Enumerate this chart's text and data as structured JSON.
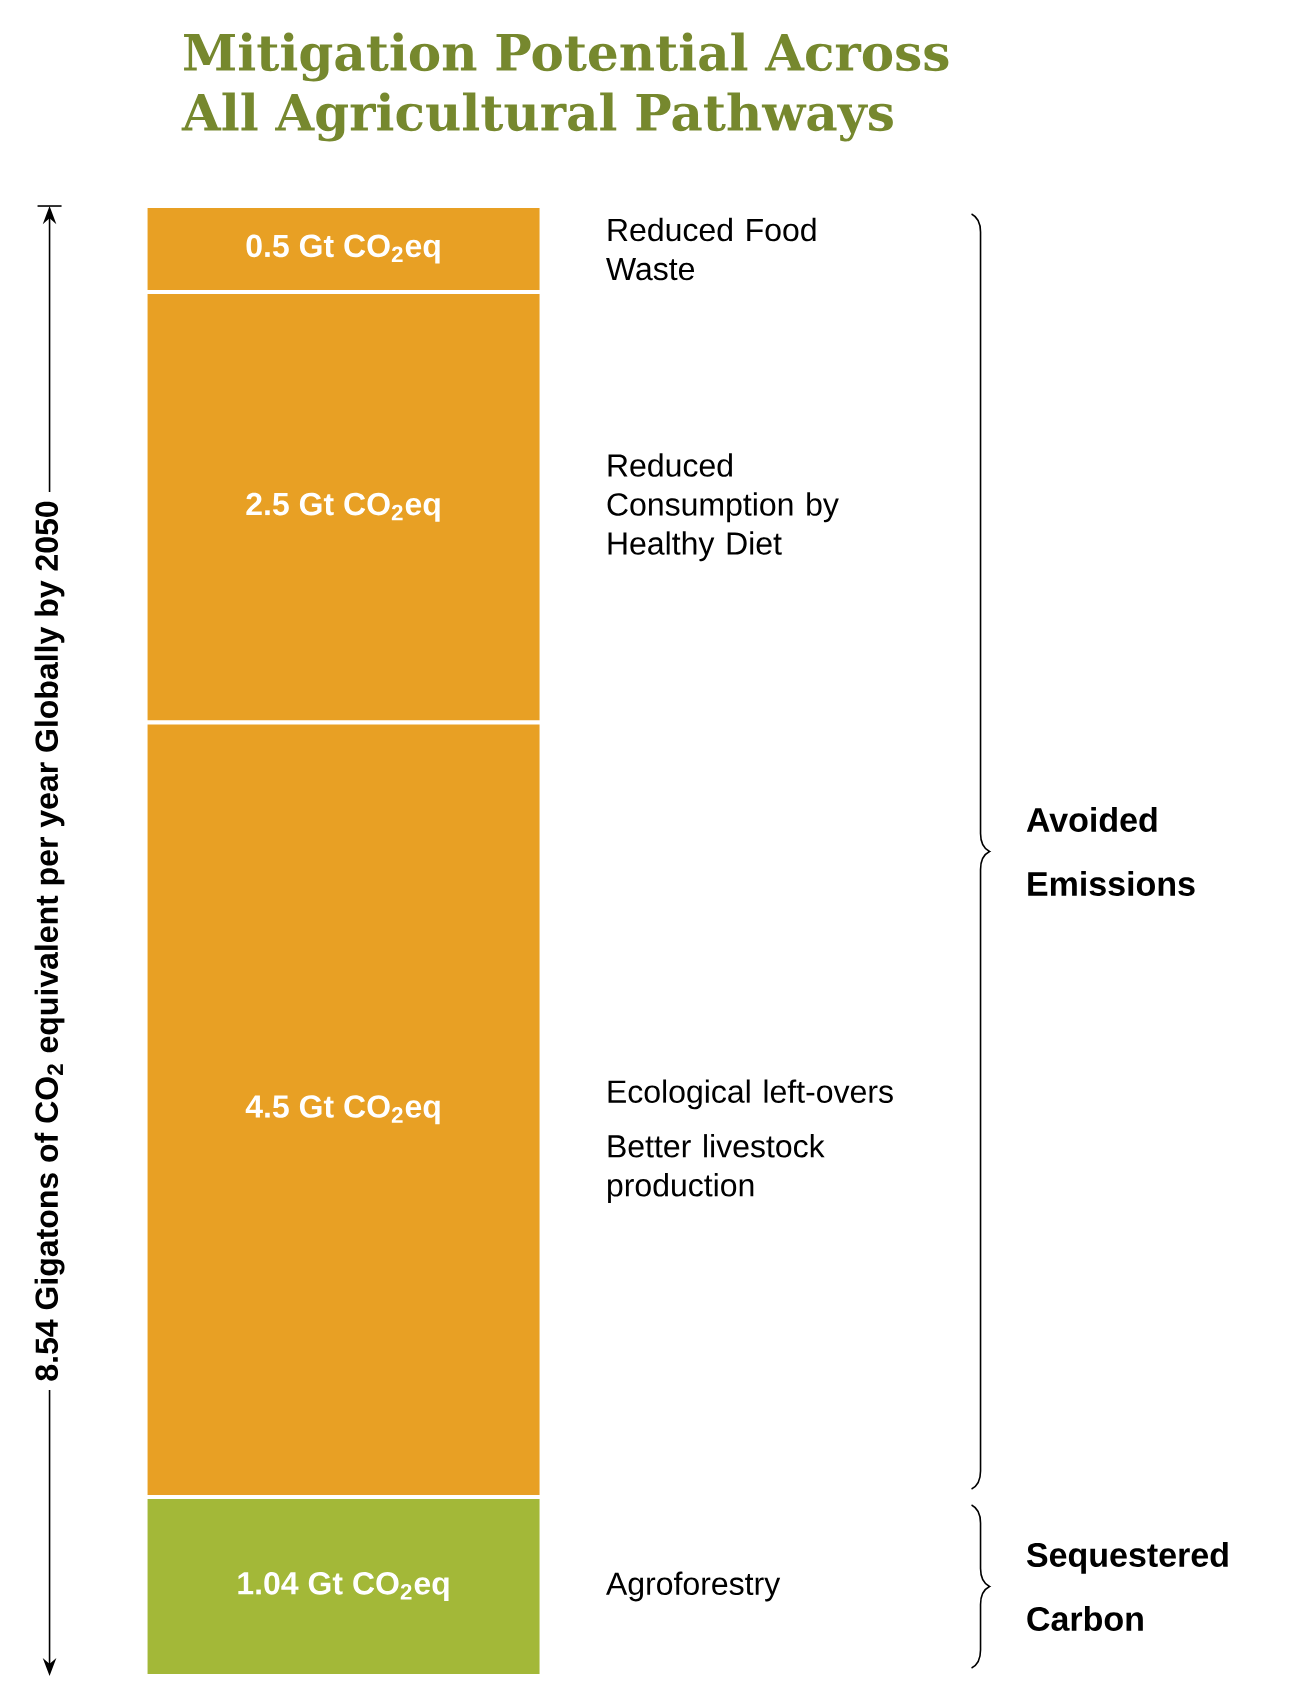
{
  "chart_data": {
    "type": "bar",
    "stacked": true,
    "title": "Mitigation Potential Across All Agricultural Pathways",
    "ylabel": "8.54 Gigatons of CO$_{2}$ equivalent per year Globally by 2050",
    "categories": [
      null
    ],
    "ylim": [
      0,
      8.54
    ],
    "series": [
      {
        "name": "Agroforestry",
        "color": "#a3b838",
        "values": [
          1.04
        ],
        "value_labels": [
          "1.04 Gt CO$_{2}$eq"
        ]
      },
      {
        "name": "Ecological left-overs",
        "color": "#e8a024",
        "values": [
          4.5
        ],
        "value_labels": [
          "4.5 Gt CO$_{2}$eq"
        ]
      },
      {
        "name": "Reduced Consumption by Healthy Diet",
        "color": "#e8a024",
        "values": [
          2.5
        ],
        "value_labels": [
          "2.5 Gt CO$_{2}$eq"
        ]
      },
      {
        "name": "Reduced Food Waste",
        "color": "#e8a024",
        "values": [
          0.5
        ],
        "value_labels": [
          "0.5 Gt CO$_{2}$eq"
        ]
      }
    ],
    "annotations": [
      "Better livestock production",
      "Avoided Emissions",
      "Sequestered Carbon"
    ]
  }
}
